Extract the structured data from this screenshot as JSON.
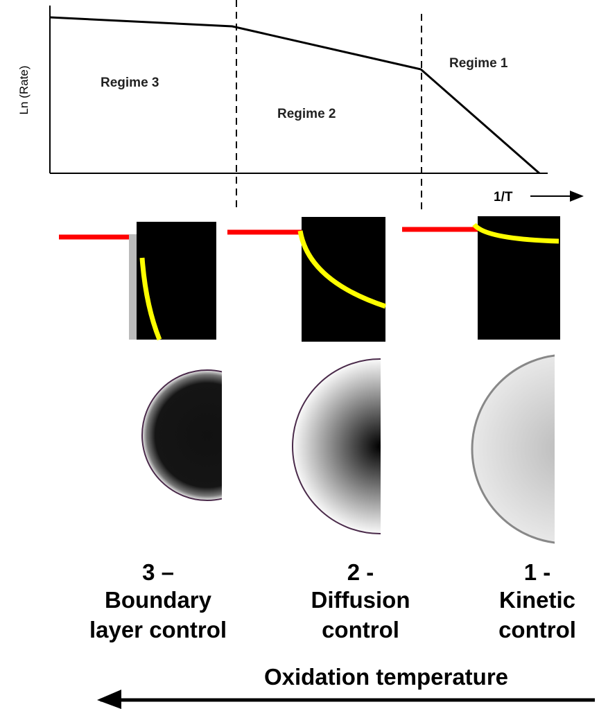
{
  "plot": {
    "y_label": "Ln (Rate)",
    "x_label": "1/T",
    "regimes": [
      "Regime 3",
      "Regime 2",
      "Regime 1"
    ]
  },
  "columns": [
    {
      "number": "3 –",
      "lines": [
        "Boundary",
        "layer control"
      ]
    },
    {
      "number": "2 -",
      "lines": [
        "Diffusion",
        "control"
      ]
    },
    {
      "number": "1 -",
      "lines": [
        "Kinetic",
        "control"
      ]
    }
  ],
  "footer": "Oxidation temperature"
}
